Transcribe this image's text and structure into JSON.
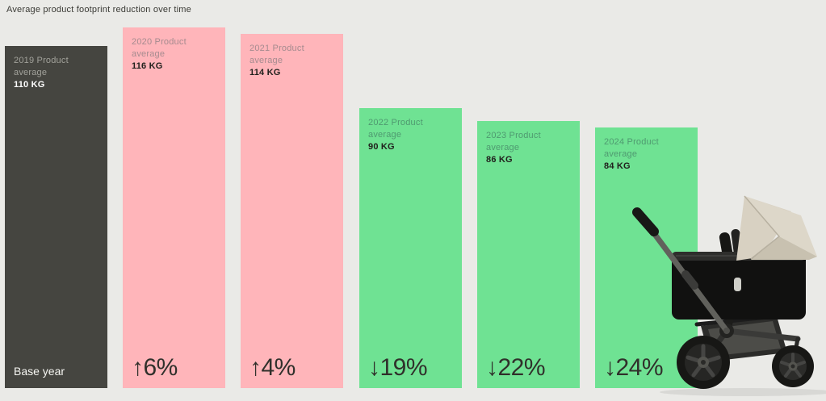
{
  "page": {
    "title": "Average product footprint reduction over time"
  },
  "colors": {
    "background": "#eaeae7",
    "bar_dark": "#454540",
    "bar_pink": "#ffb5ba",
    "bar_green": "#6fe293",
    "text_primary": "#30302b",
    "canopy_beige": "#d8d1c2"
  },
  "chart_data": {
    "type": "bar",
    "title": "Average product footprint reduction over time",
    "unit": "KG",
    "categories": [
      "2019",
      "2020",
      "2021",
      "2022",
      "2023",
      "2024"
    ],
    "values": [
      110,
      116,
      114,
      90,
      86,
      84
    ],
    "bars": [
      {
        "year": "2019",
        "label": "2019 Product average",
        "kg_label": "110 KG",
        "value": 110,
        "footer": "Base year",
        "variant": "dark"
      },
      {
        "year": "2020",
        "label": "2020 Product average",
        "kg_label": "116 KG",
        "value": 116,
        "footer": "↑6%",
        "variant": "pink"
      },
      {
        "year": "2021",
        "label": "2021 Product average",
        "kg_label": "114 KG",
        "value": 114,
        "footer": "↑4%",
        "variant": "pink"
      },
      {
        "year": "2022",
        "label": "2022 Product average",
        "kg_label": "90 KG",
        "value": 90,
        "footer": "↓19%",
        "variant": "green"
      },
      {
        "year": "2023",
        "label": "2023 Product average",
        "kg_label": "86 KG",
        "value": 86,
        "footer": "↓22%",
        "variant": "green"
      },
      {
        "year": "2024",
        "label": "2024 Product average",
        "kg_label": "84 KG",
        "value": 84,
        "footer": "↓24%",
        "variant": "green"
      }
    ]
  }
}
